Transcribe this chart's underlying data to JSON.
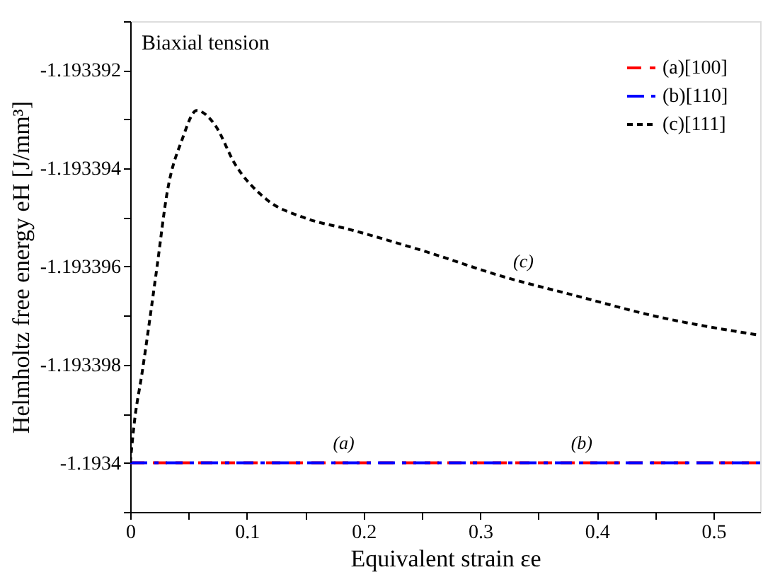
{
  "chart_data": {
    "type": "line",
    "title": "Biaxial tension",
    "xlabel": "Equivalent strain εe",
    "ylabel": "Helmholtz free energy eH [J/mm³]",
    "xlim": [
      0,
      0.54
    ],
    "ylim": [
      -1.193401,
      -1.193391
    ],
    "xticks": [
      0,
      {
        "value": 0.05,
        "label": null
      },
      0.1,
      {
        "value": 0.15,
        "label": null
      },
      0.2,
      {
        "value": 0.25,
        "label": null
      },
      0.3,
      {
        "value": 0.35,
        "label": null
      },
      0.4,
      {
        "value": 0.45,
        "label": null
      },
      0.5
    ],
    "yticks": [
      {
        "value": -1.193401,
        "label": null
      },
      {
        "value": -1.1934,
        "label": "-1.1934"
      },
      {
        "value": -1.193399,
        "label": null
      },
      {
        "value": -1.193398,
        "label": "-1.193398"
      },
      {
        "value": -1.193397,
        "label": null
      },
      {
        "value": -1.193396,
        "label": "-1.193396"
      },
      {
        "value": -1.193395,
        "label": null
      },
      {
        "value": -1.193394,
        "label": "-1.193394"
      },
      {
        "value": -1.193393,
        "label": null
      },
      {
        "value": -1.193392,
        "label": "-1.193392"
      },
      {
        "value": -1.193391,
        "label": null
      }
    ],
    "grid": false,
    "legend": "top right",
    "series": [
      {
        "name": "(a)[100]",
        "color": "#ff0000",
        "line_style": "dashed",
        "x": [
          0,
          0.54
        ],
        "values": [
          -1.1934,
          -1.1934
        ]
      },
      {
        "name": "(b)[110]",
        "color": "#0000ff",
        "line_style": "dashed",
        "x": [
          0,
          0.54
        ],
        "values": [
          -1.1934,
          -1.1934
        ]
      },
      {
        "name": "(c)[111]",
        "color": "#000000",
        "line_style": "dotted",
        "x": [
          0,
          0.0035,
          0.01,
          0.023,
          0.0315,
          0.0445,
          0.057,
          0.0725,
          0.0898,
          0.1157,
          0.15,
          0.189,
          0.254,
          0.319,
          0.383,
          0.448,
          0.537
        ],
        "values": [
          -1.1934,
          -1.19339918,
          -1.19339819,
          -1.193396,
          -1.19339451,
          -1.19339341,
          -1.19339282,
          -1.19339311,
          -1.19339391,
          -1.19339461,
          -1.19339501,
          -1.19339525,
          -1.1933957,
          -1.1933962,
          -1.1933966,
          -1.193397,
          -1.19339739
        ]
      }
    ],
    "annotations": [
      {
        "text": "(a)",
        "x": 0.183,
        "y": -1.1934
      },
      {
        "text": "(b)",
        "x": 0.387,
        "y": -1.1934
      },
      {
        "text": "(c)",
        "x": 0.337,
        "y": -1.1933963
      }
    ]
  }
}
